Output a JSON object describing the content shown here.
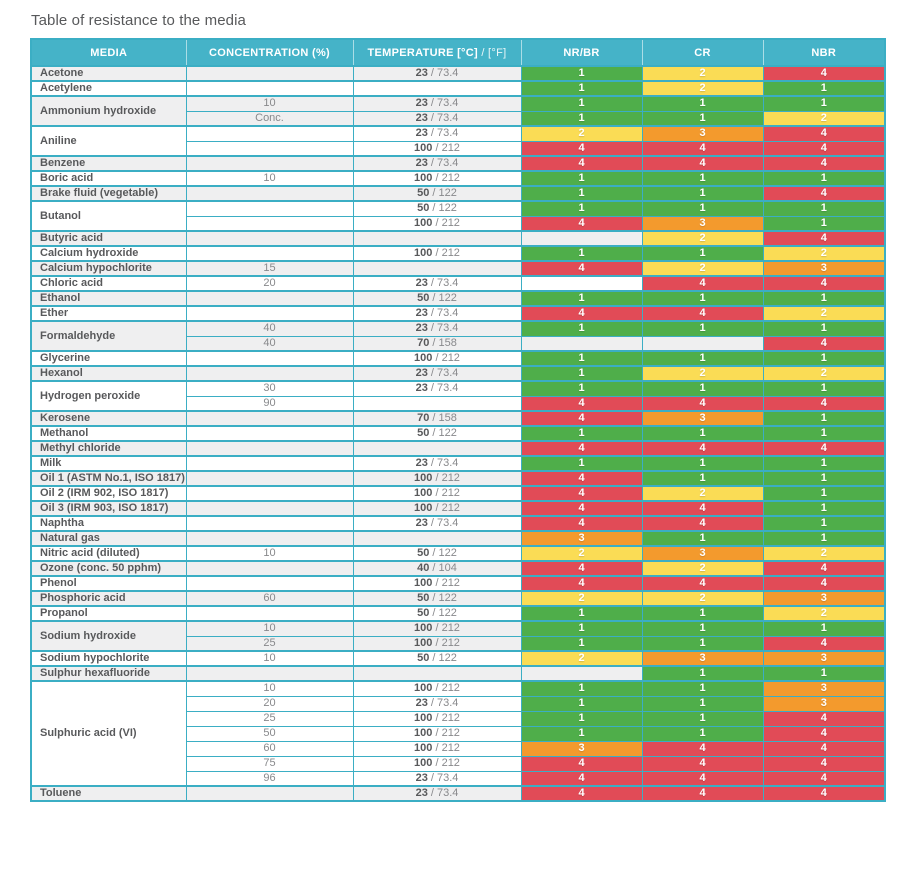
{
  "title": "Table of resistance to the media",
  "header": {
    "media": "MEDIA",
    "concentration": "CONCENTRATION (%)",
    "temperature_bold": "TEMPERATURE [°C]",
    "temperature_light": "/ [°F]",
    "nrbr": "NR/BR",
    "cr": "CR",
    "nbr": "NBR"
  },
  "colors": {
    "header_bg": "#45B3C8",
    "border": "#3BAEC4",
    "rating_1": "#4FAE4A",
    "rating_2": "#FADC55",
    "rating_3": "#F39A2D",
    "rating_4": "#E14B57",
    "row_shaded": "#EFEFF0",
    "row_plain": "#FFFFFF",
    "text_dark": "#58595B",
    "text_light": "#88898C"
  },
  "groups": [
    {
      "media": "Acetone",
      "shaded": true,
      "rows": [
        {
          "conc": "",
          "c": "23",
          "f": "73.4",
          "nrbr": 1,
          "cr": 2,
          "nbr": 4
        }
      ]
    },
    {
      "media": "Acetylene",
      "shaded": false,
      "rows": [
        {
          "conc": "",
          "c": null,
          "f": null,
          "nrbr": 1,
          "cr": 2,
          "nbr": 1
        }
      ]
    },
    {
      "media": "Ammonium hydroxide",
      "shaded": true,
      "rows": [
        {
          "conc": "10",
          "c": "23",
          "f": "73.4",
          "nrbr": 1,
          "cr": 1,
          "nbr": 1
        },
        {
          "conc": "Conc.",
          "c": "23",
          "f": "73.4",
          "nrbr": 1,
          "cr": 1,
          "nbr": 2
        }
      ]
    },
    {
      "media": "Aniline",
      "shaded": false,
      "rows": [
        {
          "conc": "",
          "c": "23",
          "f": "73.4",
          "nrbr": 2,
          "cr": 3,
          "nbr": 4
        },
        {
          "conc": "",
          "c": "100",
          "f": "212",
          "nrbr": 4,
          "cr": 4,
          "nbr": 4
        }
      ]
    },
    {
      "media": "Benzene",
      "shaded": true,
      "rows": [
        {
          "conc": "",
          "c": "23",
          "f": "73.4",
          "nrbr": 4,
          "cr": 4,
          "nbr": 4
        }
      ]
    },
    {
      "media": "Boric acid",
      "shaded": false,
      "rows": [
        {
          "conc": "10",
          "c": "100",
          "f": "212",
          "nrbr": 1,
          "cr": 1,
          "nbr": 1
        }
      ]
    },
    {
      "media": "Brake fluid (vegetable)",
      "shaded": true,
      "rows": [
        {
          "conc": "",
          "c": "50",
          "f": "122",
          "nrbr": 1,
          "cr": 1,
          "nbr": 4
        }
      ]
    },
    {
      "media": "Butanol",
      "shaded": false,
      "rows": [
        {
          "conc": "",
          "c": "50",
          "f": "122",
          "nrbr": 1,
          "cr": 1,
          "nbr": 1
        },
        {
          "conc": "",
          "c": "100",
          "f": "212",
          "nrbr": 4,
          "cr": 3,
          "nbr": 1
        }
      ]
    },
    {
      "media": "Butyric acid",
      "shaded": true,
      "rows": [
        {
          "conc": "",
          "c": null,
          "f": null,
          "nrbr": null,
          "cr": 2,
          "nbr": 4
        }
      ]
    },
    {
      "media": "Calcium hydroxide",
      "shaded": false,
      "rows": [
        {
          "conc": "",
          "c": "100",
          "f": "212",
          "nrbr": 1,
          "cr": 1,
          "nbr": 2
        }
      ]
    },
    {
      "media": "Calcium hypochlorite",
      "shaded": true,
      "rows": [
        {
          "conc": "15",
          "c": null,
          "f": null,
          "nrbr": 4,
          "cr": 2,
          "nbr": 3
        }
      ]
    },
    {
      "media": "Chloric acid",
      "shaded": false,
      "rows": [
        {
          "conc": "20",
          "c": "23",
          "f": "73.4",
          "nrbr": null,
          "cr": 4,
          "nbr": 4
        }
      ]
    },
    {
      "media": "Ethanol",
      "shaded": true,
      "rows": [
        {
          "conc": "",
          "c": "50",
          "f": "122",
          "nrbr": 1,
          "cr": 1,
          "nbr": 1
        }
      ]
    },
    {
      "media": "Ether",
      "shaded": false,
      "rows": [
        {
          "conc": "",
          "c": "23",
          "f": "73.4",
          "nrbr": 4,
          "cr": 4,
          "nbr": 2
        }
      ]
    },
    {
      "media": "Formaldehyde",
      "shaded": true,
      "rows": [
        {
          "conc": "40",
          "c": "23",
          "f": "73.4",
          "nrbr": 1,
          "cr": 1,
          "nbr": 1
        },
        {
          "conc": "40",
          "c": "70",
          "f": "158",
          "nrbr": null,
          "cr": null,
          "nbr": 4
        }
      ]
    },
    {
      "media": "Glycerine",
      "shaded": false,
      "rows": [
        {
          "conc": "",
          "c": "100",
          "f": "212",
          "nrbr": 1,
          "cr": 1,
          "nbr": 1
        }
      ]
    },
    {
      "media": "Hexanol",
      "shaded": true,
      "rows": [
        {
          "conc": "",
          "c": "23",
          "f": "73.4",
          "nrbr": 1,
          "cr": 2,
          "nbr": 2
        }
      ]
    },
    {
      "media": "Hydrogen peroxide",
      "shaded": false,
      "rows": [
        {
          "conc": "30",
          "c": "23",
          "f": "73.4",
          "nrbr": 1,
          "cr": 1,
          "nbr": 1
        },
        {
          "conc": "90",
          "c": null,
          "f": null,
          "nrbr": 4,
          "cr": 4,
          "nbr": 4
        }
      ]
    },
    {
      "media": "Kerosene",
      "shaded": true,
      "rows": [
        {
          "conc": "",
          "c": "70",
          "f": "158",
          "nrbr": 4,
          "cr": 3,
          "nbr": 1
        }
      ]
    },
    {
      "media": "Methanol",
      "shaded": false,
      "rows": [
        {
          "conc": "",
          "c": "50",
          "f": "122",
          "nrbr": 1,
          "cr": 1,
          "nbr": 1
        }
      ]
    },
    {
      "media": "Methyl chloride",
      "shaded": true,
      "rows": [
        {
          "conc": "",
          "c": null,
          "f": null,
          "nrbr": 4,
          "cr": 4,
          "nbr": 4
        }
      ]
    },
    {
      "media": "Milk",
      "shaded": false,
      "rows": [
        {
          "conc": "",
          "c": "23",
          "f": "73.4",
          "nrbr": 1,
          "cr": 1,
          "nbr": 1
        }
      ]
    },
    {
      "media": "Oil 1 (ASTM No.1, ISO 1817)",
      "shaded": true,
      "rows": [
        {
          "conc": "",
          "c": "100",
          "f": "212",
          "nrbr": 4,
          "cr": 1,
          "nbr": 1
        }
      ]
    },
    {
      "media": "Oil 2 (IRM 902, ISO 1817)",
      "shaded": false,
      "rows": [
        {
          "conc": "",
          "c": "100",
          "f": "212",
          "nrbr": 4,
          "cr": 2,
          "nbr": 1
        }
      ]
    },
    {
      "media": "Oil 3 (IRM 903, ISO 1817)",
      "shaded": true,
      "rows": [
        {
          "conc": "",
          "c": "100",
          "f": "212",
          "nrbr": 4,
          "cr": 4,
          "nbr": 1
        }
      ]
    },
    {
      "media": "Naphtha",
      "shaded": false,
      "rows": [
        {
          "conc": "",
          "c": "23",
          "f": "73.4",
          "nrbr": 4,
          "cr": 4,
          "nbr": 1
        }
      ]
    },
    {
      "media": "Natural gas",
      "shaded": true,
      "rows": [
        {
          "conc": "",
          "c": null,
          "f": null,
          "nrbr": 3,
          "cr": 1,
          "nbr": 1
        }
      ]
    },
    {
      "media": "Nitric acid (diluted)",
      "shaded": false,
      "rows": [
        {
          "conc": "10",
          "c": "50",
          "f": "122",
          "nrbr": 2,
          "cr": 3,
          "nbr": 2
        }
      ]
    },
    {
      "media": "Ozone (conc. 50 pphm)",
      "shaded": true,
      "rows": [
        {
          "conc": "",
          "c": "40",
          "f": "104",
          "nrbr": 4,
          "cr": 2,
          "nbr": 4
        }
      ]
    },
    {
      "media": "Phenol",
      "shaded": false,
      "rows": [
        {
          "conc": "",
          "c": "100",
          "f": "212",
          "nrbr": 4,
          "cr": 4,
          "nbr": 4
        }
      ]
    },
    {
      "media": "Phosphoric acid",
      "shaded": true,
      "rows": [
        {
          "conc": "60",
          "c": "50",
          "f": "122",
          "nrbr": 2,
          "cr": 2,
          "nbr": 3
        }
      ]
    },
    {
      "media": "Propanol",
      "shaded": false,
      "rows": [
        {
          "conc": "",
          "c": "50",
          "f": "122",
          "nrbr": 1,
          "cr": 1,
          "nbr": 2
        }
      ]
    },
    {
      "media": "Sodium hydroxide",
      "shaded": true,
      "rows": [
        {
          "conc": "10",
          "c": "100",
          "f": "212",
          "nrbr": 1,
          "cr": 1,
          "nbr": 1
        },
        {
          "conc": "25",
          "c": "100",
          "f": "212",
          "nrbr": 1,
          "cr": 1,
          "nbr": 4
        }
      ]
    },
    {
      "media": "Sodium hypochlorite",
      "shaded": false,
      "rows": [
        {
          "conc": "10",
          "c": "50",
          "f": "122",
          "nrbr": 2,
          "cr": 3,
          "nbr": 3
        }
      ]
    },
    {
      "media": "Sulphur hexafluoride",
      "shaded": true,
      "rows": [
        {
          "conc": "",
          "c": null,
          "f": null,
          "nrbr": null,
          "cr": 1,
          "nbr": 1
        }
      ]
    },
    {
      "media": "Sulphuric acid (VI)",
      "shaded": false,
      "rows": [
        {
          "conc": "10",
          "c": "100",
          "f": "212",
          "nrbr": 1,
          "cr": 1,
          "nbr": 3
        },
        {
          "conc": "20",
          "c": "23",
          "f": "73.4",
          "nrbr": 1,
          "cr": 1,
          "nbr": 3
        },
        {
          "conc": "25",
          "c": "100",
          "f": "212",
          "nrbr": 1,
          "cr": 1,
          "nbr": 4
        },
        {
          "conc": "50",
          "c": "100",
          "f": "212",
          "nrbr": 1,
          "cr": 1,
          "nbr": 4
        },
        {
          "conc": "60",
          "c": "100",
          "f": "212",
          "nrbr": 3,
          "cr": 4,
          "nbr": 4
        },
        {
          "conc": "75",
          "c": "100",
          "f": "212",
          "nrbr": 4,
          "cr": 4,
          "nbr": 4
        },
        {
          "conc": "96",
          "c": "23",
          "f": "73.4",
          "nrbr": 4,
          "cr": 4,
          "nbr": 4
        }
      ]
    },
    {
      "media": "Toluene",
      "shaded": true,
      "rows": [
        {
          "conc": "",
          "c": "23",
          "f": "73.4",
          "nrbr": 4,
          "cr": 4,
          "nbr": 4
        }
      ]
    }
  ]
}
